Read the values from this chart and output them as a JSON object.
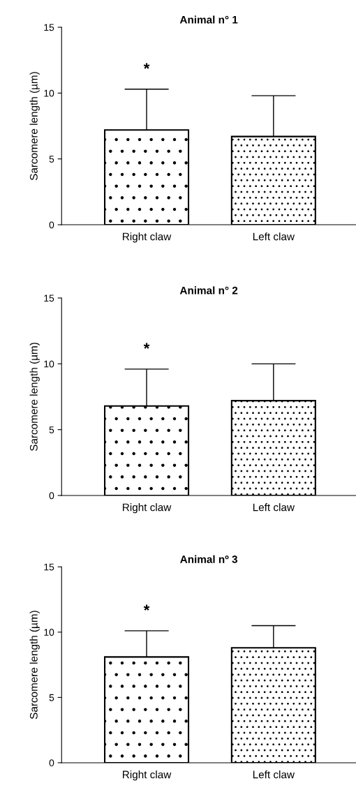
{
  "chart_data": [
    {
      "type": "bar",
      "title": "Animal n° 1",
      "ylabel": "Sarcomere length (µm)",
      "categories": [
        "Right claw",
        "Left claw"
      ],
      "values": [
        7.2,
        6.7
      ],
      "errors": [
        [
          7.2,
          10.3
        ],
        [
          6.7,
          9.8
        ]
      ],
      "colors": [
        "#ffffff",
        "#ffffff"
      ],
      "ylim": [
        0,
        15
      ],
      "yticks": [
        0,
        5,
        10,
        15
      ],
      "grid": false,
      "legend": false,
      "annotations": [
        "*"
      ]
    },
    {
      "type": "bar",
      "title": "Animal n° 2",
      "ylabel": "Sarcomere length (µm)",
      "categories": [
        "Right claw",
        "Left claw"
      ],
      "values": [
        6.8,
        7.2
      ],
      "errors": [
        [
          6.8,
          9.6
        ],
        [
          7.2,
          10.0
        ]
      ],
      "colors": [
        "#ffffff",
        "#ffffff"
      ],
      "ylim": [
        0,
        15
      ],
      "yticks": [
        0,
        5,
        10,
        15
      ],
      "grid": false,
      "legend": false,
      "annotations": [
        "*"
      ]
    },
    {
      "type": "bar",
      "title": "Animal nº 3",
      "ylabel": "Sarcomere length (µm)",
      "categories": [
        "Right claw",
        "Left claw"
      ],
      "values": [
        8.1,
        8.8
      ],
      "errors": [
        [
          8.1,
          10.1
        ],
        [
          8.8,
          10.5
        ]
      ],
      "colors": [
        "#ffffff",
        "#ffffff"
      ],
      "ylim": [
        0,
        15
      ],
      "yticks": [
        0,
        5,
        10,
        15
      ],
      "grid": false,
      "legend": false,
      "annotations": [
        "*"
      ]
    }
  ]
}
